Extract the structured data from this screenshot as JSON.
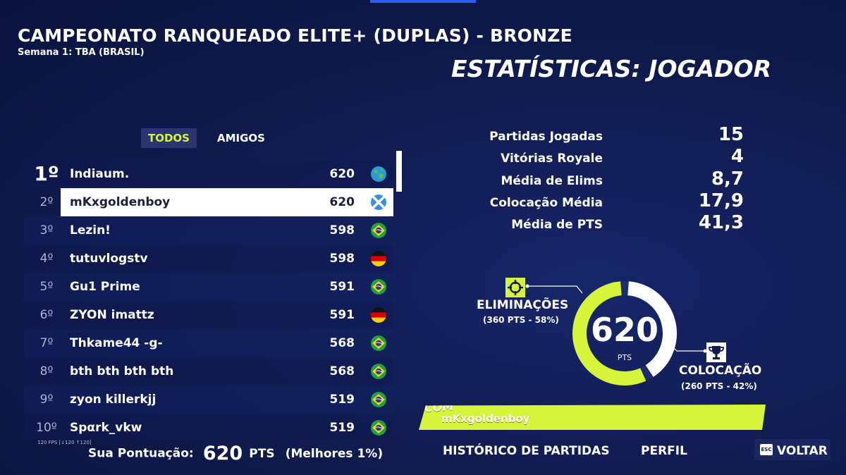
{
  "header": {
    "title": "CAMPEONATO RANQUEADO ELITE+ (DUPLAS) - BRONZE",
    "subtitle": "Semana 1: TBA (BRASIL)",
    "stats_title": "ESTATÍSTICAS: JOGADOR"
  },
  "tabs": [
    {
      "label": "TODOS",
      "active": true
    },
    {
      "label": "AMIGOS",
      "active": false
    }
  ],
  "leaderboard": [
    {
      "rank": "1º",
      "name": "Indiaum.",
      "points": "620",
      "flag": "globe-icon"
    },
    {
      "rank": "2º",
      "name": "mKxgoldenboy",
      "points": "620",
      "flag": "scotland-flag-icon"
    },
    {
      "rank": "3º",
      "name": "Lezin!",
      "points": "598",
      "flag": "brazil-flag-icon"
    },
    {
      "rank": "4º",
      "name": "tutuvlogstv",
      "points": "598",
      "flag": "germany-flag-icon"
    },
    {
      "rank": "5º",
      "name": "Gu1 Prime",
      "points": "591",
      "flag": "brazil-flag-icon"
    },
    {
      "rank": "6º",
      "name": "ZYON imattz",
      "points": "591",
      "flag": "germany-flag-icon"
    },
    {
      "rank": "7º",
      "name": "Thkame44 -g-",
      "points": "568",
      "flag": "brazil-flag-icon"
    },
    {
      "rank": "8º",
      "name": "bth bth bth bth",
      "points": "568",
      "flag": "brazil-flag-icon"
    },
    {
      "rank": "9º",
      "name": "zyon killerkjj",
      "points": "519",
      "flag": "brazil-flag-icon"
    },
    {
      "rank": "10º",
      "name": "Spαrk_vkw",
      "points": "519",
      "flag": "brazil-flag-icon"
    }
  ],
  "fps_text": "120 FPS [↓120 ↑120]",
  "score": {
    "label": "Sua Pontuação:",
    "value": "620",
    "unit": "PTS",
    "best": "(Melhores 1%)"
  },
  "stats": [
    {
      "label": "Partidas Jogadas",
      "value": "15"
    },
    {
      "label": "Vitórias Royale",
      "value": "4"
    },
    {
      "label": "Média de Elims",
      "value": "8,7"
    },
    {
      "label": "Colocação Média",
      "value": "17,9"
    },
    {
      "label": "Média de PTS",
      "value": "41,3"
    }
  ],
  "donut": {
    "total": "620",
    "unit": "PTS",
    "elim_fraction": 0.58,
    "placement_fraction": 0.42,
    "elim_color": "#d5f43a",
    "placement_color": "#ffffff",
    "elim_label": "ELIMINAÇÕES",
    "elim_sub": "(360 PTS - 58%)",
    "placement_label": "COLOCAÇÃO",
    "placement_sub": "(260 PTS - 42%)"
  },
  "team": {
    "prefix": "COM",
    "partner": "mKxgoldenboy"
  },
  "footer": {
    "history": "HISTÓRICO DE PARTIDAS",
    "profile": "PERFIL",
    "esc": "ESC",
    "back": "VOLTAR"
  },
  "colors": {
    "background": "#0f1a4d",
    "accent": "#d5f43a"
  }
}
